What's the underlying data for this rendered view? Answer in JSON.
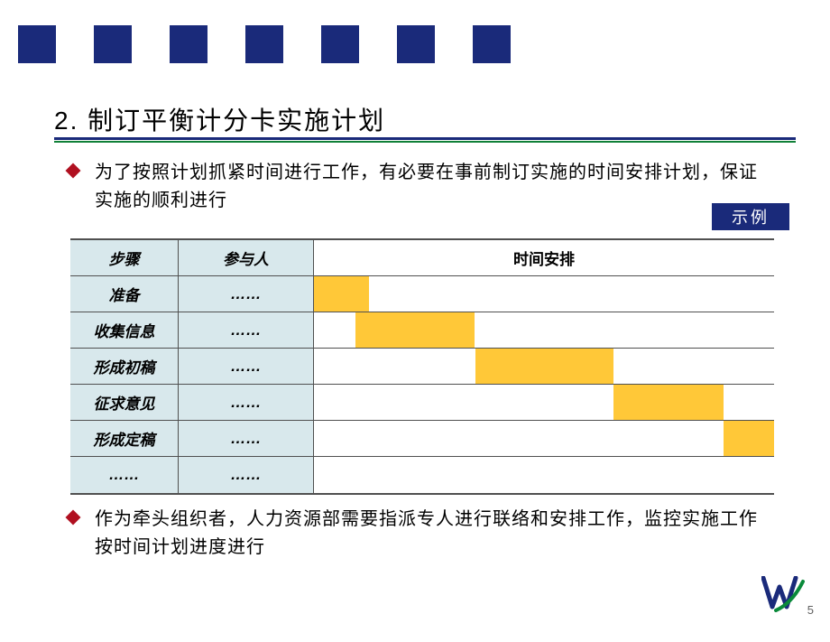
{
  "colors": {
    "navy": "#1a2a7a",
    "green": "#0a8a3a",
    "divider_green": "#108038",
    "header_fill": "#d8e8ec",
    "border": "#505050",
    "bar": "#ffc838",
    "diamond": "#b01020",
    "text": "#000000",
    "page_num": "#606060"
  },
  "title": "2. 制订平衡计分卡实施计划",
  "bullets": [
    "为了按照计划抓紧时间进行工作，有必要在事前制订实施的时间安排计划，保证实施的顺利进行",
    "作为牵头组织者，人力资源部需要指派专人进行联络和安排工作，监控实施工作按时间计划进度进行"
  ],
  "example_label": "示例",
  "gantt": {
    "headers": {
      "step": "步骤",
      "people": "参与人",
      "time": "时间安排"
    },
    "timeline_width_pct": 100,
    "rows": [
      {
        "step": "准备",
        "people": "……",
        "bar_start_pct": 0,
        "bar_width_pct": 12
      },
      {
        "step": "收集信息",
        "people": "……",
        "bar_start_pct": 9,
        "bar_width_pct": 26
      },
      {
        "step": "形成初稿",
        "people": "……",
        "bar_start_pct": 35,
        "bar_width_pct": 30
      },
      {
        "step": "征求意见",
        "people": "……",
        "bar_start_pct": 65,
        "bar_width_pct": 24
      },
      {
        "step": "形成定稿",
        "people": "……",
        "bar_start_pct": 89,
        "bar_width_pct": 11
      },
      {
        "step": "……",
        "people": "……",
        "bar_start_pct": null,
        "bar_width_pct": null
      }
    ]
  },
  "page_number": "5",
  "square_count": 7
}
